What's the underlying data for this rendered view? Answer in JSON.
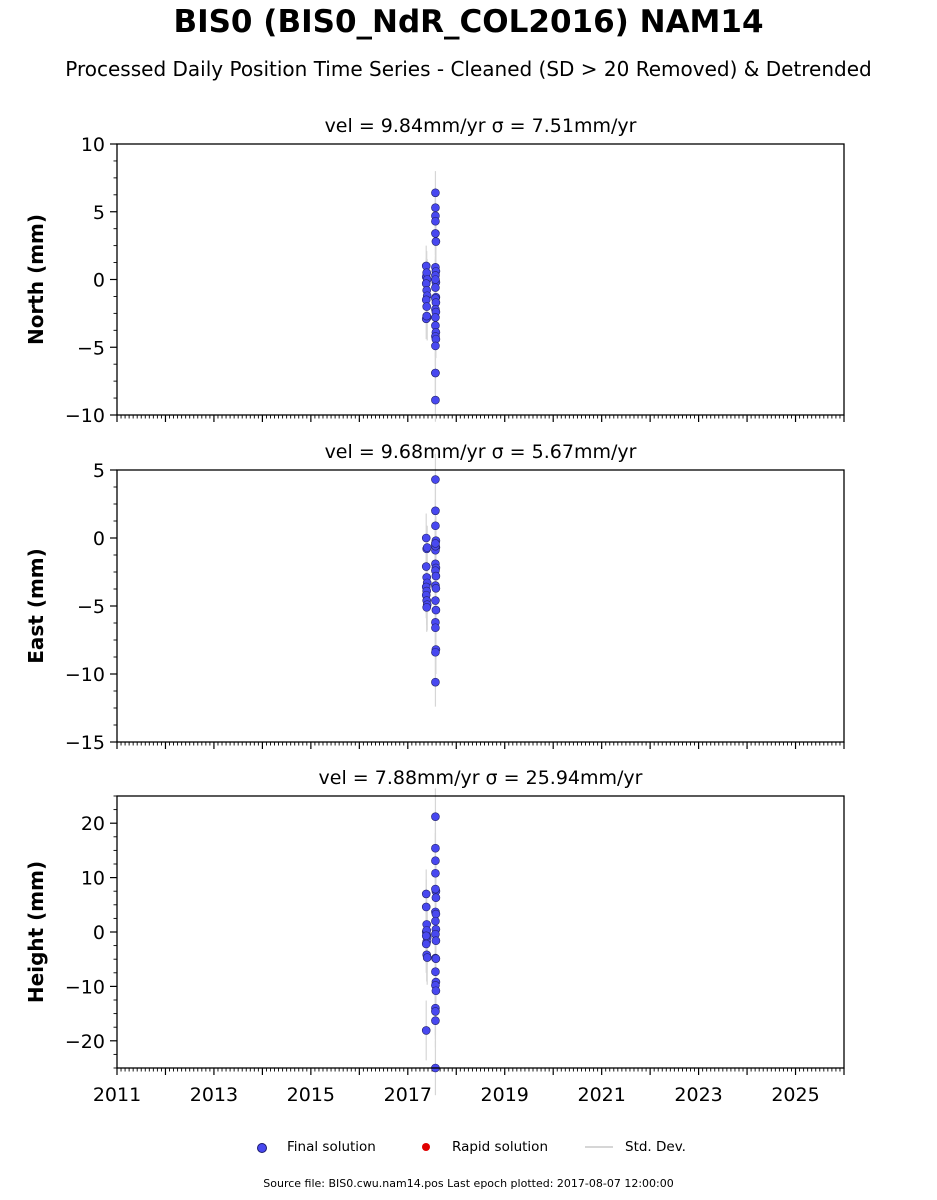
{
  "title": "BIS0 (BIS0_NdR_COL2016) NAM14",
  "subtitle": "Processed Daily Position Time Series - Cleaned (SD > 20 Removed) & Detrended",
  "legend": {
    "final": "Final solution",
    "rapid": "Rapid solution",
    "std": "Std. Dev.",
    "colors": {
      "final": "#4848f0",
      "rapid": "#e00000",
      "std": "#d6d6d6"
    }
  },
  "source": "Source file: BIS0.cwu.nam14.pos  Last epoch plotted: 2017-08-07 12:00:00",
  "chart_data": [
    {
      "type": "scatter",
      "title": "vel = 9.84mm/yr   σ = 7.51mm/yr",
      "ylabel": "North (mm)",
      "xlim": [
        2011,
        2026
      ],
      "ylim": [
        -10,
        10
      ],
      "yticks": [
        -10,
        -5,
        0,
        5,
        10
      ],
      "ytick_labels": [
        "−10",
        "−5",
        "0",
        "5",
        "10"
      ],
      "xticks": [
        2011,
        2013,
        2015,
        2017,
        2019,
        2021,
        2023,
        2025
      ],
      "show_xtick_labels": false,
      "series": [
        {
          "x": [
            2017.38,
            2017.38,
            2017.39,
            2017.4,
            2017.38,
            2017.39,
            2017.4,
            2017.38,
            2017.39,
            2017.4,
            2017.38,
            2017.39,
            2017.57,
            2017.57,
            2017.57,
            2017.57,
            2017.57,
            2017.58,
            2017.57,
            2017.58,
            2017.57,
            2017.58,
            2017.57,
            2017.58,
            2017.57,
            2017.58,
            2017.57,
            2017.58,
            2017.57,
            2017.57,
            2017.58,
            2017.57,
            2017.58,
            2017.57,
            2017.57,
            2017.57,
            2017.57,
            2017.57
          ],
          "y": [
            1.0,
            0.2,
            0.5,
            0.0,
            -0.3,
            -0.8,
            -1.2,
            -1.5,
            -2.0,
            -2.8,
            -2.9,
            -2.7,
            6.4,
            5.3,
            4.7,
            4.3,
            3.4,
            2.8,
            0.9,
            0.6,
            0.3,
            -0.2,
            -0.6,
            -1.3,
            -1.4,
            -1.7,
            -2.2,
            -2.4,
            -2.8,
            -3.4,
            -3.9,
            -4.2,
            -4.4,
            -4.9,
            -6.9,
            -6.9,
            -8.9,
            0.0
          ],
          "err": [
            1.5,
            1.4,
            1.6,
            1.5,
            1.3,
            1.5,
            1.4,
            1.6,
            1.5,
            1.7,
            1.5,
            1.6,
            1.6,
            1.5,
            1.4,
            1.5,
            1.6,
            1.5,
            1.7,
            1.6,
            1.4,
            1.5,
            1.6,
            1.5,
            1.4,
            1.5,
            1.6,
            1.5,
            1.4,
            1.5,
            1.6,
            1.5,
            1.4,
            1.5,
            1.6,
            1.5,
            1.6,
            1.5
          ]
        }
      ]
    },
    {
      "type": "scatter",
      "title": "vel = 9.68mm/yr   σ = 5.67mm/yr",
      "ylabel": "East (mm)",
      "xlim": [
        2011,
        2026
      ],
      "ylim": [
        -15,
        5
      ],
      "yticks": [
        -15,
        -10,
        -5,
        0,
        5
      ],
      "ytick_labels": [
        "−15",
        "−10",
        "−5",
        "0",
        "5"
      ],
      "xticks": [
        2011,
        2013,
        2015,
        2017,
        2019,
        2021,
        2023,
        2025
      ],
      "show_xtick_labels": false,
      "series": [
        {
          "x": [
            2017.38,
            2017.39,
            2017.4,
            2017.38,
            2017.39,
            2017.4,
            2017.38,
            2017.39,
            2017.38,
            2017.39,
            2017.4,
            2017.39,
            2017.57,
            2017.57,
            2017.57,
            2017.58,
            2017.57,
            2017.58,
            2017.57,
            2017.57,
            2017.58,
            2017.57,
            2017.58,
            2017.57,
            2017.58,
            2017.57,
            2017.58,
            2017.57,
            2017.57,
            2017.58,
            2017.57,
            2017.57,
            2017.57,
            2017.57
          ],
          "y": [
            0.0,
            -0.8,
            -0.7,
            -2.1,
            -2.9,
            -3.3,
            -3.6,
            -3.9,
            -4.2,
            -4.6,
            -4.9,
            -5.1,
            4.3,
            2.0,
            0.9,
            -0.2,
            -0.5,
            -0.7,
            -0.9,
            -1.9,
            -2.2,
            -2.4,
            -2.8,
            -3.5,
            -3.7,
            -4.6,
            -5.3,
            -6.2,
            -6.6,
            -8.2,
            -8.4,
            -10.6,
            -0.6,
            -0.4
          ],
          "err": [
            1.8,
            1.7,
            1.6,
            1.8,
            1.7,
            1.6,
            1.9,
            1.8,
            1.7,
            1.8,
            1.9,
            1.8,
            1.9,
            1.8,
            1.9,
            1.8,
            1.9,
            1.8,
            1.9,
            1.8,
            1.9,
            1.8,
            1.9,
            1.8,
            1.9,
            1.8,
            1.9,
            1.8,
            1.9,
            1.8,
            1.9,
            1.8,
            1.9,
            1.8
          ]
        }
      ]
    },
    {
      "type": "scatter",
      "title": "vel = 7.88mm/yr   σ = 25.94mm/yr",
      "ylabel": "Height (mm)",
      "xlim": [
        2011,
        2026
      ],
      "ylim": [
        -25,
        25
      ],
      "yticks": [
        -20,
        -10,
        0,
        10,
        20
      ],
      "ytick_labels": [
        "−20",
        "−10",
        "0",
        "10",
        "20"
      ],
      "xticks": [
        2011,
        2013,
        2015,
        2017,
        2019,
        2021,
        2023,
        2025
      ],
      "xtick_labels": [
        "2011",
        "2013",
        "2015",
        "2017",
        "2019",
        "2021",
        "2023",
        "2025"
      ],
      "show_xtick_labels": true,
      "series": [
        {
          "x": [
            2017.38,
            2017.38,
            2017.39,
            2017.38,
            2017.39,
            2017.4,
            2017.39,
            2017.38,
            2017.39,
            2017.4,
            2017.38,
            2017.39,
            2017.38,
            2017.57,
            2017.57,
            2017.57,
            2017.57,
            2017.58,
            2017.57,
            2017.58,
            2017.57,
            2017.58,
            2017.57,
            2017.58,
            2017.57,
            2017.58,
            2017.57,
            2017.58,
            2017.57,
            2017.58,
            2017.57,
            2017.58,
            2017.57,
            2017.57,
            2017.57,
            2017.57
          ],
          "y": [
            7.0,
            4.6,
            1.4,
            0.0,
            -0.5,
            -1.0,
            -1.8,
            -2.2,
            -4.2,
            -4.7,
            -18.1,
            0.3,
            -0.7,
            21.2,
            15.4,
            13.1,
            10.8,
            7.5,
            7.9,
            6.3,
            3.7,
            3.3,
            2.0,
            0.5,
            -0.4,
            -1.6,
            -4.8,
            -4.9,
            -7.3,
            -9.2,
            -9.8,
            -10.8,
            -14.0,
            -14.6,
            -16.3,
            -25.0
          ],
          "err": [
            4.5,
            5.0,
            4.8,
            5.2,
            4.9,
            5.1,
            4.7,
            5.3,
            4.9,
            5.0,
            5.5,
            4.8,
            5.0,
            5.2,
            4.9,
            5.1,
            4.8,
            5.3,
            4.9,
            5.0,
            4.8,
            5.1,
            4.9,
            5.2,
            4.8,
            5.0,
            5.1,
            4.9,
            5.0,
            4.8,
            5.2,
            4.9,
            5.0,
            5.1,
            4.9,
            5.0
          ]
        }
      ]
    }
  ]
}
